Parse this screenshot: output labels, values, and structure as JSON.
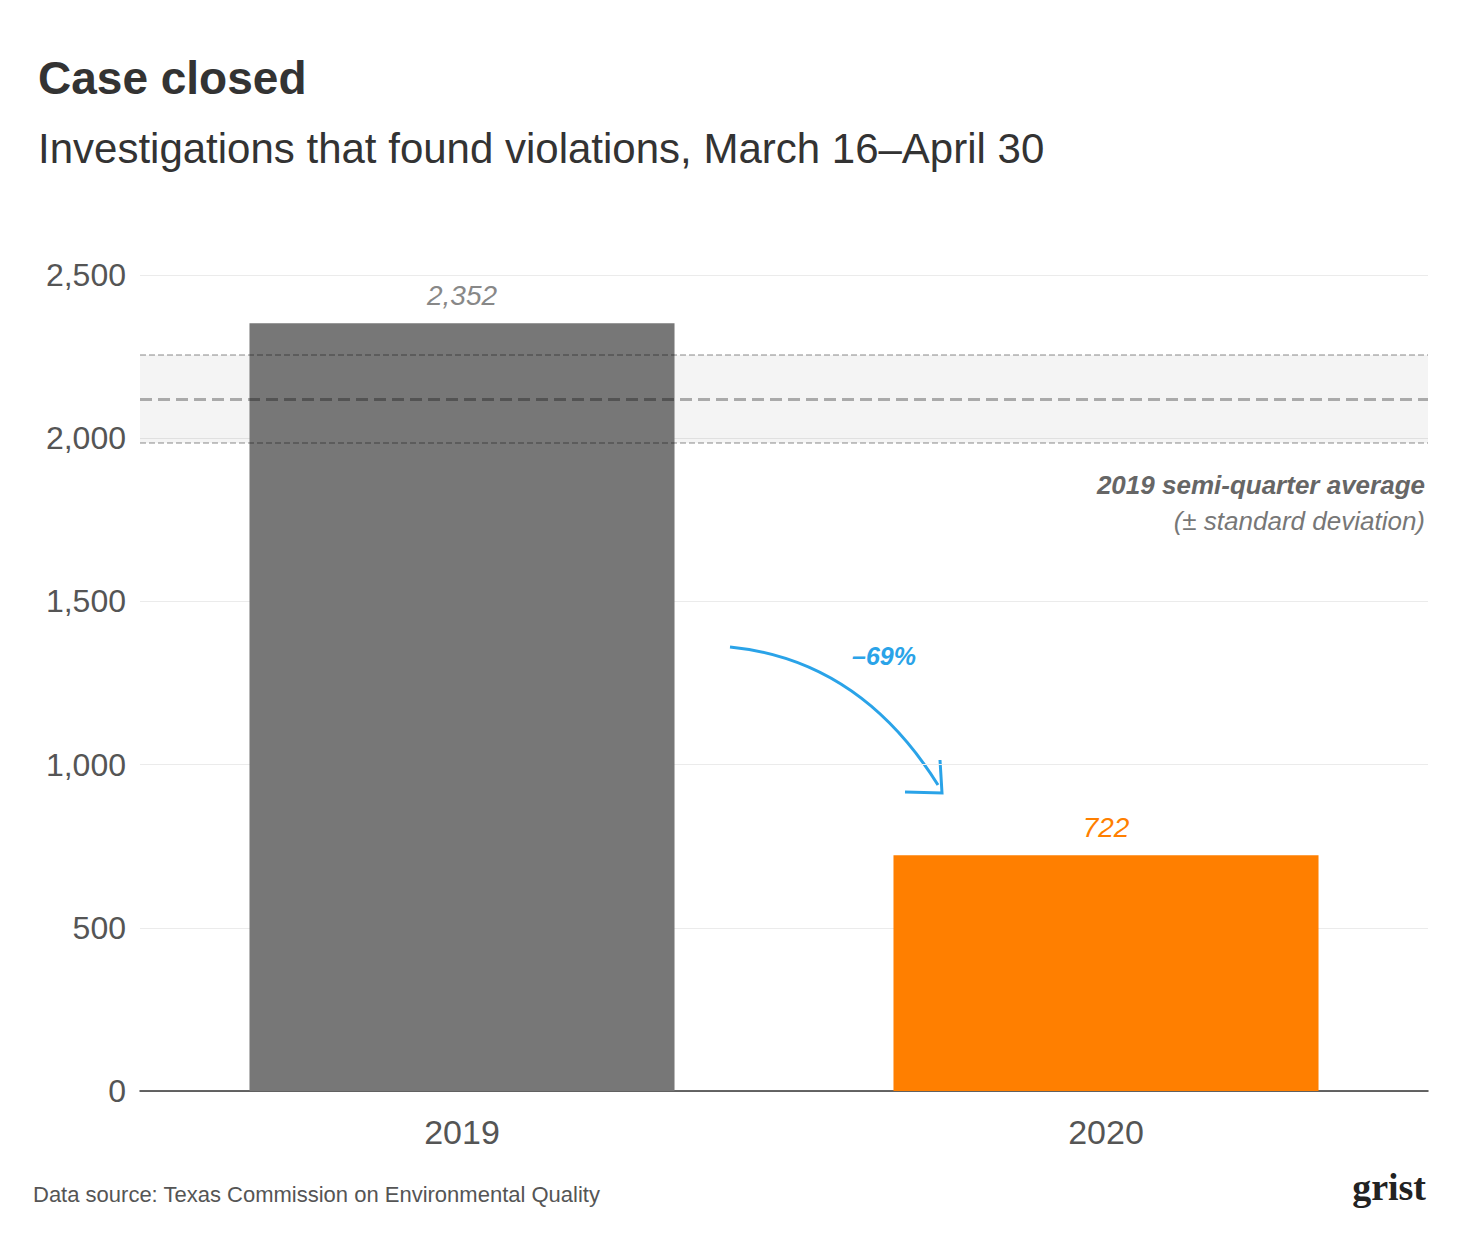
{
  "chart_data": {
    "type": "bar",
    "title": "Case closed",
    "subtitle": "Investigations that found violations, March 16–April 30",
    "categories": [
      "2019",
      "2020"
    ],
    "values": [
      2352,
      722
    ],
    "value_labels": [
      "2,352",
      "722"
    ],
    "colors": [
      "#777777",
      "#ff7f00"
    ],
    "data_labels": true,
    "ylim": [
      0,
      2500
    ],
    "yticks": [
      0,
      500,
      {
        "value": 1000,
        "label": "1,000"
      },
      {
        "value": 1500,
        "label": "1,500"
      },
      {
        "value": 2000,
        "label": "2,000"
      },
      {
        "value": 2500,
        "label": "2,500"
      }
    ],
    "grid": true,
    "average_band": {
      "value": 2120,
      "sd": 135,
      "label": "2019 semi-quarter average",
      "note": "(± standard deviation)"
    },
    "annotations": [
      {
        "text": "–69%"
      }
    ],
    "source": "Data source: Texas Commission on Environmental Quality",
    "logo": "grist"
  }
}
